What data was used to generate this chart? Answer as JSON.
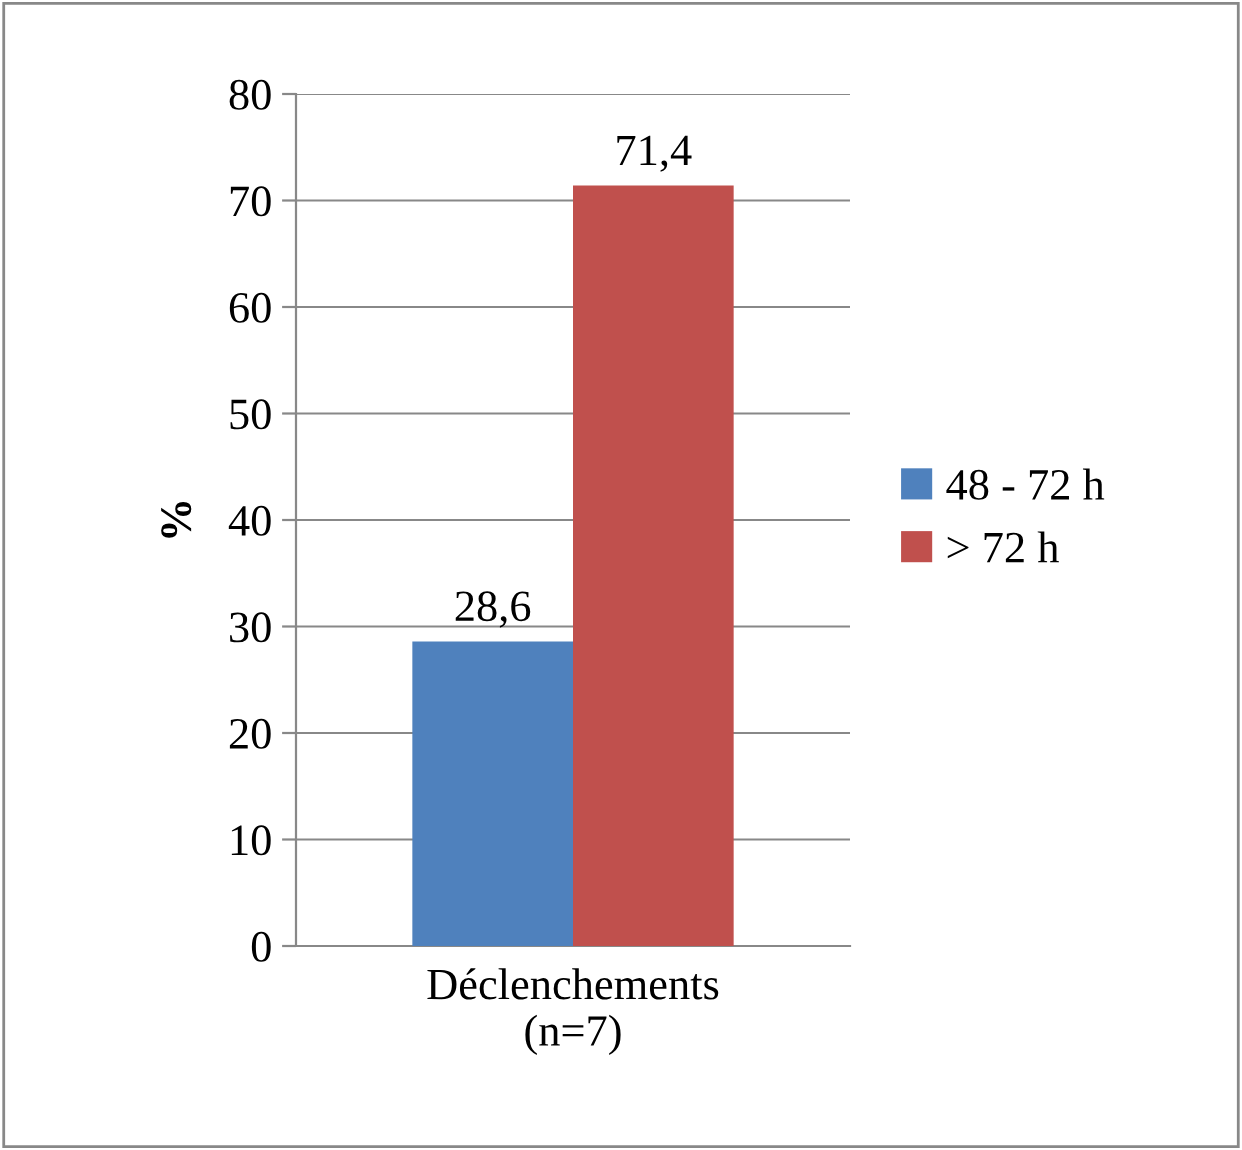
{
  "chart_data": {
    "type": "bar",
    "ylabel": "%",
    "categories": [
      "Déclenchements\n(n=7)"
    ],
    "series": [
      {
        "name": "48 - 72 h",
        "color": "#4f81bd",
        "values": [
          28.6
        ],
        "value_labels": [
          "28,6"
        ]
      },
      {
        "name": "> 72 h",
        "color": "#c0504d",
        "values": [
          71.4
        ],
        "value_labels": [
          "71,4"
        ]
      }
    ],
    "ylim": [
      0,
      80
    ],
    "yticks": [
      0,
      10,
      20,
      30,
      40,
      50,
      60,
      70,
      80
    ],
    "grid": "y",
    "legend": "right"
  }
}
